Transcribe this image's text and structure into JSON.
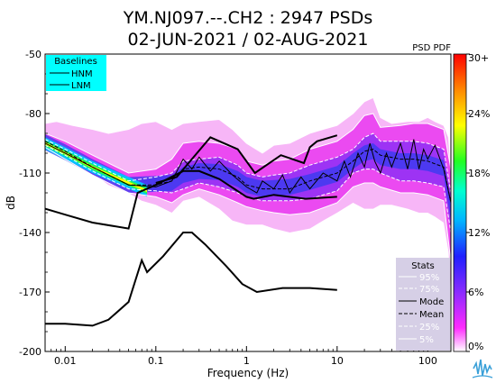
{
  "chart_data": {
    "type": "heatmap",
    "title_line1": "YM.NJ097.--.CH2 : 2947 PSDs",
    "title_line2": "02-JUN-2021 / 02-AUG-2021",
    "xlabel": "Frequency (Hz)",
    "ylabel": "dB",
    "xscale": "log",
    "xlim": [
      0.006,
      180
    ],
    "ylim": [
      -200,
      -50
    ],
    "x_ticks": [
      {
        "value": 0.01,
        "label": "0.01"
      },
      {
        "value": 0.1,
        "label": "0.1"
      },
      {
        "value": 1,
        "label": "1"
      },
      {
        "value": 10,
        "label": "10"
      },
      {
        "value": 100,
        "label": "100"
      }
    ],
    "y_ticks": [
      {
        "value": -50,
        "label": "-50"
      },
      {
        "value": -80,
        "label": "-80"
      },
      {
        "value": -110,
        "label": "-110"
      },
      {
        "value": -140,
        "label": "-140"
      },
      {
        "value": -170,
        "label": "-170"
      },
      {
        "value": -200,
        "label": "-200"
      }
    ],
    "colorbar": {
      "title": "PSD PDF",
      "ticks": [
        "30+",
        "24%",
        "18%",
        "12%",
        "6%",
        "0%"
      ],
      "colors": [
        "#ffffff",
        "#ff2bff",
        "#8a2bff",
        "#2020ff",
        "#00b4ff",
        "#00ffd0",
        "#22ff22",
        "#ffff00",
        "#ff8800",
        "#ff0000"
      ]
    },
    "baselines_legend": {
      "title": "Baselines",
      "items": [
        "HNM",
        "LNM"
      ],
      "background": "#00ffff"
    },
    "stats_legend": {
      "title": "Stats",
      "items": [
        "95%",
        "75%",
        "Mode",
        "Mean",
        "25%",
        "5%"
      ],
      "background": "#d6cfe6"
    },
    "hnm": {
      "x": [
        0.1,
        0.17,
        0.4,
        0.8,
        1.24,
        2.4,
        4.3,
        5.0,
        6.0,
        10.0
      ],
      "y": [
        -115,
        -112,
        -92,
        -98,
        -110,
        -101,
        -105,
        -97,
        -94,
        -91
      ]
    },
    "lnm": {
      "x": [
        0.006,
        0.01,
        0.02,
        0.05,
        0.063,
        0.1,
        0.2,
        0.3,
        0.5,
        1.0,
        1.2,
        2.0,
        4.5,
        10.0
      ],
      "y": [
        -128,
        -131,
        -135,
        -138,
        -120,
        -116,
        -109,
        -109,
        -113,
        -122,
        -123,
        -121,
        -123,
        -122
      ]
    },
    "nlnm_lower": {
      "x": [
        0.006,
        0.01,
        0.02,
        0.03,
        0.05,
        0.07,
        0.08,
        0.12,
        0.2,
        0.25,
        0.35,
        0.6,
        0.9,
        1.3,
        2.5,
        5.0,
        10.0
      ],
      "y": [
        -186,
        -186,
        -187,
        -184,
        -175,
        -154,
        -160,
        -152,
        -140,
        -140,
        -146,
        -157,
        -166,
        -170,
        -168,
        -168,
        -169
      ]
    },
    "envelope": {
      "x": [
        0.006,
        0.008,
        0.012,
        0.02,
        0.03,
        0.05,
        0.07,
        0.1,
        0.15,
        0.2,
        0.3,
        0.5,
        0.7,
        1.0,
        1.5,
        2.0,
        3.0,
        5.0,
        7.0,
        10.0,
        15.0,
        20.0,
        25.0,
        30.0,
        40.0,
        60.0,
        80.0,
        100.0,
        120.0,
        150.0,
        170.0,
        180.0
      ],
      "upper": [
        -85,
        -84,
        -86,
        -88,
        -90,
        -88,
        -85,
        -84,
        -88,
        -85,
        -84,
        -83,
        -88,
        -95,
        -100,
        -96,
        -95,
        -90,
        -88,
        -86,
        -80,
        -74,
        -72,
        -82,
        -85,
        -84,
        -84,
        -82,
        -84,
        -86,
        -92,
        -110
      ],
      "lower": [
        -96,
        -99,
        -104,
        -110,
        -116,
        -120,
        -124,
        -126,
        -130,
        -124,
        -122,
        -128,
        -134,
        -136,
        -136,
        -138,
        -140,
        -138,
        -134,
        -130,
        -125,
        -128,
        -128,
        -126,
        -126,
        -128,
        -130,
        -130,
        -132,
        -135,
        -150,
        -172
      ]
    },
    "percentiles": {
      "x": [
        0.006,
        0.01,
        0.02,
        0.05,
        0.1,
        0.15,
        0.2,
        0.3,
        0.5,
        0.8,
        1.0,
        1.5,
        2.0,
        3.0,
        5.0,
        10.0,
        15.0,
        20.0,
        25.0,
        30.0,
        50.0,
        70.0,
        100.0,
        150.0,
        180.0
      ],
      "p95": [
        -90,
        -94,
        -101,
        -110,
        -108,
        -103,
        -95,
        -94,
        -95,
        -98,
        -104,
        -106,
        -104,
        -103,
        -98,
        -94,
        -88,
        -81,
        -80,
        -87,
        -86,
        -85,
        -85,
        -88,
        -108
      ],
      "p75": [
        -93,
        -98,
        -105,
        -114,
        -112,
        -110,
        -104,
        -103,
        -102,
        -106,
        -110,
        -112,
        -111,
        -110,
        -106,
        -102,
        -98,
        -92,
        -90,
        -94,
        -94,
        -94,
        -95,
        -98,
        -120
      ],
      "p25": [
        -96,
        -101,
        -109,
        -118,
        -119,
        -120,
        -118,
        -115,
        -117,
        -120,
        -122,
        -124,
        -124,
        -124,
        -123,
        -119,
        -110,
        -108,
        -108,
        -110,
        -114,
        -114,
        -115,
        -117,
        -140
      ],
      "p5": [
        -97,
        -103,
        -111,
        -120,
        -122,
        -125,
        -121,
        -118,
        -121,
        -125,
        -127,
        -129,
        -130,
        -131,
        -130,
        -125,
        -117,
        -115,
        -115,
        -117,
        -120,
        -120,
        -121,
        -124,
        -155
      ]
    },
    "mode": {
      "x": [
        0.006,
        0.01,
        0.02,
        0.05,
        0.1,
        0.15,
        0.2,
        0.25,
        0.3,
        0.4,
        0.5,
        0.7,
        1.0,
        1.3,
        1.5,
        2.0,
        2.5,
        3.0,
        4.0,
        5.0,
        7.0,
        10.0,
        12.0,
        14.0,
        17.0,
        20.0,
        23.0,
        26.0,
        30.0,
        35.0,
        40.0,
        50.0,
        60.0,
        70.0,
        80.0,
        90.0,
        100.0,
        120.0,
        150.0,
        180.0
      ],
      "y": [
        -95,
        -100,
        -107,
        -116,
        -117,
        -114,
        -103,
        -108,
        -102,
        -109,
        -104,
        -111,
        -117,
        -120,
        -114,
        -118,
        -111,
        -120,
        -112,
        -118,
        -110,
        -114,
        -104,
        -112,
        -100,
        -107,
        -95,
        -104,
        -110,
        -100,
        -107,
        -95,
        -108,
        -93,
        -108,
        -98,
        -103,
        -96,
        -108,
        -125
      ]
    },
    "mean": {
      "x": [
        0.006,
        0.01,
        0.02,
        0.05,
        0.1,
        0.15,
        0.2,
        0.3,
        0.5,
        0.8,
        1.0,
        1.5,
        2.0,
        3.0,
        5.0,
        10.0,
        15.0,
        20.0,
        25.0,
        30.0,
        50.0,
        70.0,
        100.0,
        150.0,
        180.0
      ],
      "y": [
        -94,
        -99,
        -107,
        -116,
        -116,
        -114,
        -108,
        -107,
        -108,
        -112,
        -116,
        -118,
        -118,
        -118,
        -114,
        -110,
        -104,
        -99,
        -98,
        -101,
        -103,
        -103,
        -104,
        -107,
        -125
      ]
    }
  }
}
